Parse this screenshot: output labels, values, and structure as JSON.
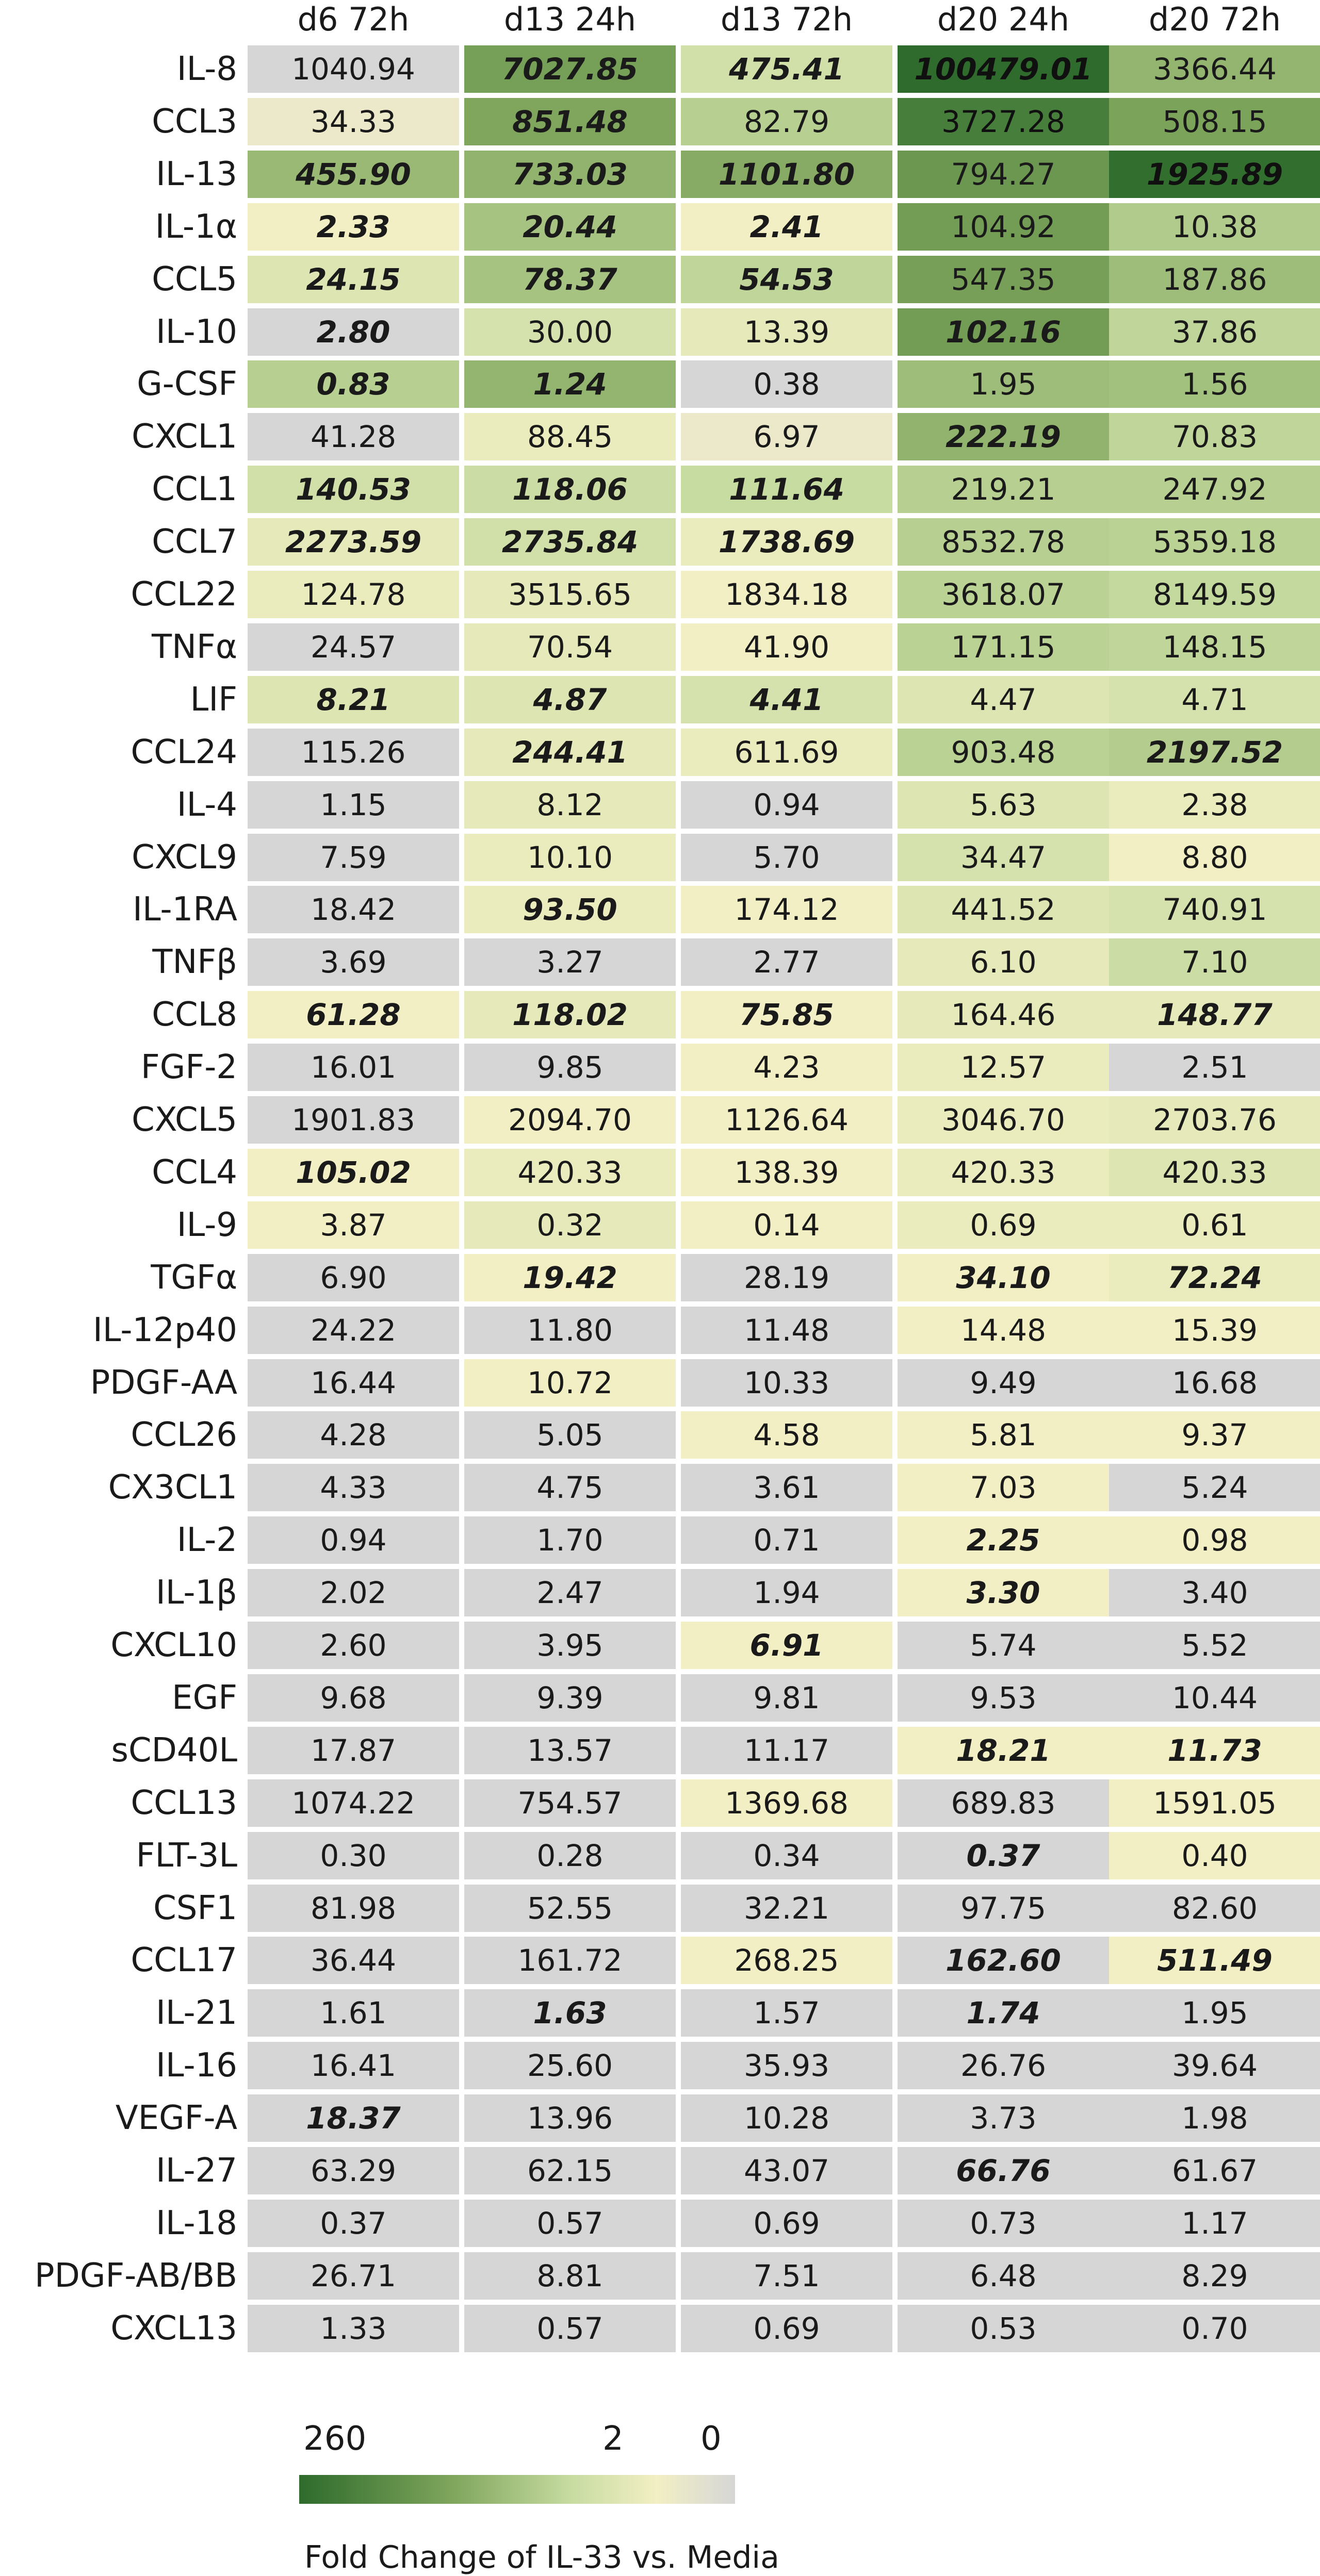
{
  "chart_data": {
    "type": "heatmap",
    "title": "",
    "columns": [
      "d6 72h",
      "d13 24h",
      "d13 72h",
      "d20 24h",
      "d20 72h"
    ],
    "rows": [
      {
        "label": "IL-8",
        "values": [
          "1040.94",
          "7027.85",
          "475.41",
          "100479.01",
          "3366.44"
        ],
        "emphasis": [
          false,
          true,
          true,
          true,
          false
        ],
        "fold_change": [
          0,
          56,
          6,
          260,
          28
        ]
      },
      {
        "label": "CCL3",
        "values": [
          "34.33",
          "851.48",
          "82.79",
          "3727.28",
          "508.15"
        ],
        "emphasis": [
          false,
          true,
          false,
          false,
          false
        ],
        "fold_change": [
          1.5,
          45,
          12,
          150,
          50
        ]
      },
      {
        "label": "IL-13",
        "values": [
          "455.90",
          "733.03",
          "1101.80",
          "794.27",
          "1925.89"
        ],
        "emphasis": [
          true,
          true,
          true,
          false,
          true
        ],
        "fold_change": [
          25,
          30,
          38,
          70,
          240
        ]
      },
      {
        "label": "IL-1α",
        "values": [
          "2.33",
          "20.44",
          "2.41",
          "104.92",
          "10.38"
        ],
        "emphasis": [
          true,
          true,
          true,
          false,
          false
        ],
        "fold_change": [
          2,
          18,
          2,
          60,
          14
        ]
      },
      {
        "label": "CCL5",
        "values": [
          "24.15",
          "78.37",
          "54.53",
          "547.35",
          "187.86"
        ],
        "emphasis": [
          true,
          true,
          true,
          false,
          false
        ],
        "fold_change": [
          4,
          18,
          10,
          55,
          22
        ]
      },
      {
        "label": "IL-10",
        "values": [
          "2.80",
          "30.00",
          "13.39",
          "102.16",
          "37.86"
        ],
        "emphasis": [
          true,
          false,
          false,
          true,
          false
        ],
        "fold_change": [
          0,
          5,
          3,
          60,
          10
        ]
      },
      {
        "label": "G-CSF",
        "values": [
          "0.83",
          "1.24",
          "0.38",
          "1.95",
          "1.56"
        ],
        "emphasis": [
          true,
          true,
          false,
          false,
          false
        ],
        "fold_change": [
          12,
          28,
          0,
          22,
          20
        ]
      },
      {
        "label": "CXCL1",
        "values": [
          "41.28",
          "88.45",
          "6.97",
          "222.19",
          "70.83"
        ],
        "emphasis": [
          false,
          false,
          false,
          true,
          false
        ],
        "fold_change": [
          0,
          2.5,
          1.5,
          30,
          10
        ]
      },
      {
        "label": "CCL1",
        "values": [
          "140.53",
          "118.06",
          "111.64",
          "219.21",
          "247.92"
        ],
        "emphasis": [
          true,
          true,
          true,
          false,
          false
        ],
        "fold_change": [
          6,
          7,
          8,
          12,
          12
        ]
      },
      {
        "label": "CCL7",
        "values": [
          "2273.59",
          "2735.84",
          "1738.69",
          "8532.78",
          "5359.18"
        ],
        "emphasis": [
          true,
          true,
          true,
          false,
          false
        ],
        "fold_change": [
          3,
          6,
          2.5,
          12,
          11
        ]
      },
      {
        "label": "CCL22",
        "values": [
          "124.78",
          "3515.65",
          "1834.18",
          "3618.07",
          "8149.59"
        ],
        "emphasis": [
          false,
          false,
          false,
          false,
          false
        ],
        "fold_change": [
          2.5,
          3,
          2,
          11,
          9
        ]
      },
      {
        "label": "TNFα",
        "values": [
          "24.57",
          "70.54",
          "41.90",
          "171.15",
          "148.15"
        ],
        "emphasis": [
          false,
          false,
          false,
          false,
          false
        ],
        "fold_change": [
          0,
          3,
          2,
          11,
          10
        ]
      },
      {
        "label": "LIF",
        "values": [
          "8.21",
          "4.87",
          "4.41",
          "4.47",
          "4.71"
        ],
        "emphasis": [
          true,
          true,
          true,
          false,
          false
        ],
        "fold_change": [
          4,
          4,
          5,
          4,
          5
        ]
      },
      {
        "label": "CCL24",
        "values": [
          "115.26",
          "244.41",
          "611.69",
          "903.48",
          "2197.52"
        ],
        "emphasis": [
          false,
          true,
          false,
          false,
          true
        ],
        "fold_change": [
          0,
          3,
          2.5,
          11,
          13
        ]
      },
      {
        "label": "IL-4",
        "values": [
          "1.15",
          "8.12",
          "0.94",
          "5.63",
          "2.38"
        ],
        "emphasis": [
          false,
          false,
          false,
          false,
          false
        ],
        "fold_change": [
          0,
          3,
          0,
          4,
          2.5
        ]
      },
      {
        "label": "CXCL9",
        "values": [
          "7.59",
          "10.10",
          "5.70",
          "34.47",
          "8.80"
        ],
        "emphasis": [
          false,
          false,
          false,
          false,
          false
        ],
        "fold_change": [
          0,
          2.5,
          0,
          5,
          2
        ]
      },
      {
        "label": "IL-1RA",
        "values": [
          "18.42",
          "93.50",
          "174.12",
          "441.52",
          "740.91"
        ],
        "emphasis": [
          false,
          true,
          false,
          false,
          false
        ],
        "fold_change": [
          0,
          2.5,
          2,
          4,
          5
        ]
      },
      {
        "label": "TNFβ",
        "values": [
          "3.69",
          "3.27",
          "2.77",
          "6.10",
          "7.10"
        ],
        "emphasis": [
          false,
          false,
          false,
          false,
          false
        ],
        "fold_change": [
          0,
          0,
          0,
          3,
          7
        ]
      },
      {
        "label": "CCL8",
        "values": [
          "61.28",
          "118.02",
          "75.85",
          "164.46",
          "148.77"
        ],
        "emphasis": [
          true,
          true,
          true,
          false,
          true
        ],
        "fold_change": [
          2,
          3,
          2,
          3,
          3
        ]
      },
      {
        "label": "FGF-2",
        "values": [
          "16.01",
          "9.85",
          "4.23",
          "12.57",
          "2.51"
        ],
        "emphasis": [
          false,
          false,
          false,
          false,
          false
        ],
        "fold_change": [
          0,
          0,
          2,
          2.5,
          0
        ]
      },
      {
        "label": "CXCL5",
        "values": [
          "1901.83",
          "2094.70",
          "1126.64",
          "3046.70",
          "2703.76"
        ],
        "emphasis": [
          false,
          false,
          false,
          false,
          false
        ],
        "fold_change": [
          0,
          2,
          2,
          2.5,
          3
        ]
      },
      {
        "label": "CCL4",
        "values": [
          "105.02",
          "420.33",
          "138.39",
          "420.33",
          "420.33"
        ],
        "emphasis": [
          true,
          false,
          false,
          false,
          false
        ],
        "fold_change": [
          2,
          2.5,
          2,
          2.5,
          4
        ]
      },
      {
        "label": "IL-9",
        "values": [
          "3.87",
          "0.32",
          "0.14",
          "0.69",
          "0.61"
        ],
        "emphasis": [
          false,
          false,
          false,
          false,
          false
        ],
        "fold_change": [
          2,
          3,
          2,
          2.5,
          2.5
        ]
      },
      {
        "label": "TGFα",
        "values": [
          "6.90",
          "19.42",
          "28.19",
          "34.10",
          "72.24"
        ],
        "emphasis": [
          false,
          true,
          false,
          true,
          true
        ],
        "fold_change": [
          0,
          2,
          0,
          2,
          2.5
        ]
      },
      {
        "label": "IL-12p40",
        "values": [
          "24.22",
          "11.80",
          "11.48",
          "14.48",
          "15.39"
        ],
        "emphasis": [
          false,
          false,
          false,
          false,
          false
        ],
        "fold_change": [
          0,
          0,
          0,
          2,
          2
        ]
      },
      {
        "label": "PDGF-AA",
        "values": [
          "16.44",
          "10.72",
          "10.33",
          "9.49",
          "16.68"
        ],
        "emphasis": [
          false,
          false,
          false,
          false,
          false
        ],
        "fold_change": [
          0,
          2,
          0,
          0,
          0
        ]
      },
      {
        "label": "CCL26",
        "values": [
          "4.28",
          "5.05",
          "4.58",
          "5.81",
          "9.37"
        ],
        "emphasis": [
          false,
          false,
          false,
          false,
          false
        ],
        "fold_change": [
          0,
          0,
          2,
          2,
          2
        ]
      },
      {
        "label": "CX3CL1",
        "values": [
          "4.33",
          "4.75",
          "3.61",
          "7.03",
          "5.24"
        ],
        "emphasis": [
          false,
          false,
          false,
          false,
          false
        ],
        "fold_change": [
          0,
          0,
          0,
          2,
          0
        ]
      },
      {
        "label": "IL-2",
        "values": [
          "0.94",
          "1.70",
          "0.71",
          "2.25",
          "0.98"
        ],
        "emphasis": [
          false,
          false,
          false,
          true,
          false
        ],
        "fold_change": [
          0,
          0,
          0,
          2,
          2
        ]
      },
      {
        "label": "IL-1β",
        "values": [
          "2.02",
          "2.47",
          "1.94",
          "3.30",
          "3.40"
        ],
        "emphasis": [
          false,
          false,
          false,
          true,
          false
        ],
        "fold_change": [
          0,
          0,
          0,
          2,
          0
        ]
      },
      {
        "label": "CXCL10",
        "values": [
          "2.60",
          "3.95",
          "6.91",
          "5.74",
          "5.52"
        ],
        "emphasis": [
          false,
          false,
          true,
          false,
          false
        ],
        "fold_change": [
          0,
          0,
          2,
          0,
          0
        ]
      },
      {
        "label": "EGF",
        "values": [
          "9.68",
          "9.39",
          "9.81",
          "9.53",
          "10.44"
        ],
        "emphasis": [
          false,
          false,
          false,
          false,
          false
        ],
        "fold_change": [
          0,
          0,
          0,
          0,
          0
        ]
      },
      {
        "label": "sCD40L",
        "values": [
          "17.87",
          "13.57",
          "11.17",
          "18.21",
          "11.73"
        ],
        "emphasis": [
          false,
          false,
          false,
          true,
          true
        ],
        "fold_change": [
          0,
          0,
          0,
          2,
          2
        ]
      },
      {
        "label": "CCL13",
        "values": [
          "1074.22",
          "754.57",
          "1369.68",
          "689.83",
          "1591.05"
        ],
        "emphasis": [
          false,
          false,
          false,
          false,
          false
        ],
        "fold_change": [
          0,
          0,
          2,
          0,
          2
        ]
      },
      {
        "label": "FLT-3L",
        "values": [
          "0.30",
          "0.28",
          "0.34",
          "0.37",
          "0.40"
        ],
        "emphasis": [
          false,
          false,
          false,
          true,
          false
        ],
        "fold_change": [
          0,
          0,
          0,
          0,
          2
        ]
      },
      {
        "label": "CSF1",
        "values": [
          "81.98",
          "52.55",
          "32.21",
          "97.75",
          "82.60"
        ],
        "emphasis": [
          false,
          false,
          false,
          false,
          false
        ],
        "fold_change": [
          0,
          0,
          0,
          0,
          0
        ]
      },
      {
        "label": "CCL17",
        "values": [
          "36.44",
          "161.72",
          "268.25",
          "162.60",
          "511.49"
        ],
        "emphasis": [
          false,
          false,
          false,
          true,
          true
        ],
        "fold_change": [
          0,
          0,
          2,
          0,
          2
        ]
      },
      {
        "label": "IL-21",
        "values": [
          "1.61",
          "1.63",
          "1.57",
          "1.74",
          "1.95"
        ],
        "emphasis": [
          false,
          true,
          false,
          true,
          false
        ],
        "fold_change": [
          0,
          0,
          0,
          0,
          0
        ]
      },
      {
        "label": "IL-16",
        "values": [
          "16.41",
          "25.60",
          "35.93",
          "26.76",
          "39.64"
        ],
        "emphasis": [
          false,
          false,
          false,
          false,
          false
        ],
        "fold_change": [
          0,
          0,
          0,
          0,
          0
        ]
      },
      {
        "label": "VEGF-A",
        "values": [
          "18.37",
          "13.96",
          "10.28",
          "3.73",
          "1.98"
        ],
        "emphasis": [
          true,
          false,
          false,
          false,
          false
        ],
        "fold_change": [
          0,
          0,
          0,
          0,
          0
        ]
      },
      {
        "label": "IL-27",
        "values": [
          "63.29",
          "62.15",
          "43.07",
          "66.76",
          "61.67"
        ],
        "emphasis": [
          false,
          false,
          false,
          true,
          false
        ],
        "fold_change": [
          0,
          0,
          0,
          0,
          0
        ]
      },
      {
        "label": "IL-18",
        "values": [
          "0.37",
          "0.57",
          "0.69",
          "0.73",
          "1.17"
        ],
        "emphasis": [
          false,
          false,
          false,
          false,
          false
        ],
        "fold_change": [
          0,
          0,
          0,
          0,
          0
        ]
      },
      {
        "label": "PDGF-AB/BB",
        "values": [
          "26.71",
          "8.81",
          "7.51",
          "6.48",
          "8.29"
        ],
        "emphasis": [
          false,
          false,
          false,
          false,
          false
        ],
        "fold_change": [
          0,
          0,
          0,
          0,
          0
        ]
      },
      {
        "label": "CXCL13",
        "values": [
          "1.33",
          "0.57",
          "0.69",
          "0.53",
          "0.70"
        ],
        "emphasis": [
          false,
          false,
          false,
          false,
          false
        ],
        "fold_change": [
          0,
          0,
          0,
          0,
          0
        ]
      }
    ],
    "legend": {
      "title": "Fold Change of IL-33 vs. Media",
      "ticks": [
        "260",
        "2",
        "0"
      ],
      "tick_values": [
        260,
        2,
        0
      ],
      "colors": {
        "high": "#2e6b2c",
        "mid_high": "#7fa55c",
        "mid": "#c6dba0",
        "low": "#f2efc4",
        "zero": "#d6d6d6"
      }
    }
  }
}
